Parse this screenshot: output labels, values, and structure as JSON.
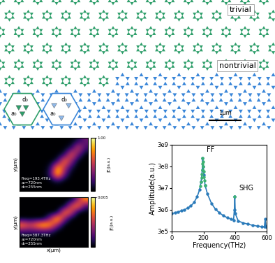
{
  "diagram": {
    "region_labels": [
      "trivial",
      "nontrivial"
    ],
    "insets": [
      {
        "region": "trivial",
        "labels": [
          "d₀",
          "a₀"
        ]
      },
      {
        "region": "nontrivial",
        "labels": [
          "d₀",
          "a₀"
        ]
      }
    ],
    "scale_bar": "1μm"
  },
  "chart_data": [
    {
      "type": "heatmap",
      "text": [
        "Freq=193.4THz",
        "a₀=720nm",
        "d₀=255nm"
      ],
      "ylabel": "y(μm)",
      "tick_labels": false,
      "colorbar_label": "|E|(a.u.)",
      "colorbar_range": [
        0,
        1
      ],
      "colorbar_ticks": [
        {
          "value": 1,
          "label": "1.00"
        }
      ],
      "cells": [
        [
          0,
          0,
          0,
          0,
          0,
          0,
          0,
          0,
          0.1,
          0.3
        ],
        [
          0,
          0,
          0,
          0,
          0,
          0,
          0,
          0.1,
          0.6,
          0.2
        ],
        [
          0,
          0,
          0,
          0,
          0,
          0,
          0.1,
          0.7,
          0.3,
          0
        ],
        [
          0,
          0,
          0,
          0,
          0,
          0.1,
          0.8,
          0.4,
          0,
          0
        ],
        [
          0,
          0,
          0,
          0,
          0.1,
          0.9,
          0.5,
          0.1,
          0,
          0
        ],
        [
          0,
          0,
          0,
          0,
          0.2,
          1.0,
          0.3,
          0,
          0,
          0
        ],
        [
          0,
          0,
          0,
          0,
          0,
          0.1,
          0,
          0,
          0,
          0
        ],
        [
          0,
          0,
          0,
          0,
          0,
          0,
          0,
          0,
          0,
          0
        ]
      ]
    },
    {
      "type": "heatmap",
      "text": [
        "Freq=387.3THz",
        "a₀=720nm",
        "d₀=255nm"
      ],
      "ylabel": "y(μm)",
      "xlabel": "x(μm)",
      "tick_labels": false,
      "colorbar_label": "|E|(a.u.)",
      "colorbar_range": [
        0,
        0.005
      ],
      "colorbar_ticks": [
        0.005
      ],
      "cells": [
        [
          0,
          0,
          0,
          0,
          0,
          0,
          0,
          0,
          0.002,
          0.004
        ],
        [
          0,
          0,
          0,
          0,
          0,
          0,
          0,
          0.003,
          0.004,
          0.001
        ],
        [
          0,
          0,
          0,
          0,
          0,
          0,
          0.004,
          0.003,
          0,
          0
        ],
        [
          0,
          0,
          0,
          0,
          0.002,
          0.005,
          0.002,
          0,
          0,
          0
        ],
        [
          0.004,
          0.003,
          0.004,
          0.005,
          0.004,
          0.002,
          0,
          0,
          0,
          0
        ],
        [
          0.001,
          0.001,
          0.001,
          0.001,
          0.001,
          0,
          0,
          0,
          0,
          0
        ],
        [
          0,
          0,
          0,
          0,
          0,
          0,
          0,
          0,
          0,
          0
        ],
        [
          0,
          0,
          0,
          0,
          0,
          0,
          0,
          0,
          0,
          0
        ]
      ]
    },
    {
      "type": "line",
      "xlabel": "Frequency(THz)",
      "ylabel": "Amplitude(a.u.)",
      "log": "y",
      "xlim": [
        0,
        600
      ],
      "xticks": [
        0,
        200,
        400,
        600
      ],
      "ylim": [
        300000,
        3000000000
      ],
      "yticks": [
        {
          "value": 300000,
          "label": "3e5"
        },
        {
          "value": 3000000,
          "label": "3e6"
        },
        {
          "value": 30000000,
          "label": "3e7"
        },
        {
          "value": 300000000,
          "label": "3e8"
        },
        {
          "value": 3000000000,
          "label": "3e9"
        }
      ],
      "grid": false,
      "annotations": [
        {
          "text": "FF",
          "x": 195
        },
        {
          "text": "SHG",
          "x": 398
        }
      ],
      "series": [
        {
          "color": "#2b7bba",
          "marker": "o",
          "line_style": "solid",
          "x": [
            0,
            20,
            40,
            60,
            80,
            100,
            120,
            140,
            160,
            175,
            185,
            192,
            195,
            198,
            202,
            210,
            225,
            250,
            275,
            300,
            325,
            350,
            375,
            390,
            395,
            398,
            401,
            420,
            450,
            480,
            510,
            540,
            570,
            585,
            590,
            595,
            600
          ],
          "values": [
            2000000,
            2200000,
            2400000,
            2700000,
            3000000,
            3600000,
            4500000,
            6500000,
            12000000,
            25000000,
            60000000,
            200000000,
            700000000,
            300000000,
            120000000,
            40000000,
            16000000,
            6000000,
            3200000,
            2200000,
            1600000,
            1300000,
            1100000,
            1000000,
            3000000,
            12000000,
            2000000,
            900000,
            750000,
            650000,
            580000,
            530000,
            500000,
            500000,
            1100000,
            500000,
            500000
          ]
        },
        {
          "color": "#3cb371",
          "marker": "o",
          "line_style": "none",
          "x": [
            180,
            185,
            188,
            190,
            192,
            194,
            195,
            196,
            198,
            200,
            203,
            206,
            210,
            398
          ],
          "values": [
            38000000,
            60000000,
            90000000,
            130000000,
            200000000,
            400000000,
            700000000,
            500000000,
            300000000,
            180000000,
            100000000,
            65000000,
            40000000,
            12000000
          ]
        }
      ]
    }
  ]
}
